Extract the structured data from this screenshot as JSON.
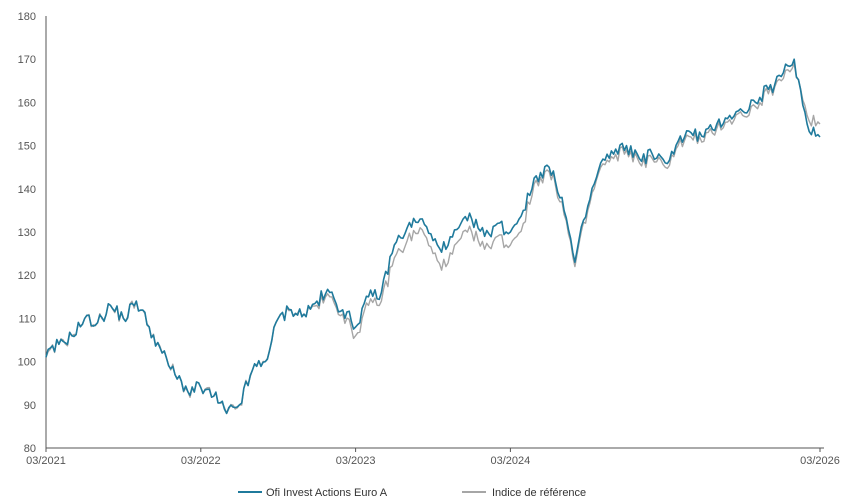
{
  "chart_data": {
    "type": "line",
    "title": "",
    "xlabel": "",
    "ylabel": "",
    "ylim": [
      80,
      180
    ],
    "yticks": [
      80,
      90,
      100,
      110,
      120,
      130,
      140,
      150,
      160,
      170,
      180
    ],
    "xlim": [
      "2021-03",
      "2026-03"
    ],
    "xticks": [
      "03/2021",
      "03/2022",
      "03/2023",
      "03/2024",
      "03/2026"
    ],
    "grid": false,
    "legend_position": "bottom-center",
    "x": [
      "2021-03",
      "2021-04",
      "2021-05",
      "2021-06",
      "2021-07",
      "2021-08",
      "2021-09",
      "2021-10",
      "2021-11",
      "2021-12",
      "2022-01",
      "2022-02",
      "2022-03",
      "2022-04",
      "2022-05",
      "2022-06",
      "2022-07",
      "2022-08",
      "2022-09",
      "2022-10",
      "2022-11",
      "2022-12",
      "2023-01",
      "2023-02",
      "2023-03",
      "2023-04",
      "2023-05",
      "2023-06",
      "2023-07",
      "2023-08",
      "2023-09",
      "2023-10",
      "2023-11",
      "2023-12",
      "2024-01",
      "2024-02",
      "2024-03",
      "2024-04",
      "2024-05",
      "2024-06",
      "2024-07",
      "2024-08",
      "2024-09",
      "2024-10",
      "2024-11",
      "2024-12",
      "2025-01",
      "2025-02",
      "2025-03",
      "2025-04",
      "2025-05",
      "2025-06",
      "2025-07",
      "2025-08",
      "2025-09",
      "2025-10",
      "2025-11",
      "2025-12",
      "2026-01",
      "2026-02",
      "2026-03"
    ],
    "series": [
      {
        "name": "Ofi Invest Actions Euro A",
        "color": "#1f7a9c",
        "values": [
          101,
          104,
          106,
          110,
          109,
          113,
          110,
          114,
          108,
          102,
          97,
          93,
          94,
          92,
          88,
          90,
          98,
          100,
          110,
          112,
          111,
          114,
          116,
          112,
          108,
          115,
          116,
          127,
          131,
          133,
          128,
          126,
          131,
          133,
          129,
          132,
          130,
          135,
          143,
          145,
          138,
          123,
          136,
          146,
          148,
          150,
          147,
          148,
          146,
          151,
          153,
          152,
          155,
          157,
          158,
          160,
          163,
          166,
          170,
          155,
          152
        ],
        "hover_color": "#1f7a9c"
      },
      {
        "name": "Indice de référence",
        "color": "#a6a6a6",
        "values": [
          101,
          104,
          106,
          110,
          109,
          113,
          110,
          114,
          108,
          102,
          97,
          93,
          94,
          92,
          88,
          90,
          98,
          100,
          110,
          112,
          111,
          113,
          115,
          111,
          106,
          113,
          114,
          124,
          128,
          131,
          125,
          122,
          128,
          130,
          126,
          129,
          127,
          132,
          142,
          144,
          137,
          122,
          135,
          145,
          147,
          149,
          146,
          147,
          145,
          150,
          152,
          151,
          154,
          156,
          157,
          159,
          162,
          165,
          169,
          157,
          155
        ],
        "hover_color": "#a6a6a6"
      }
    ]
  }
}
